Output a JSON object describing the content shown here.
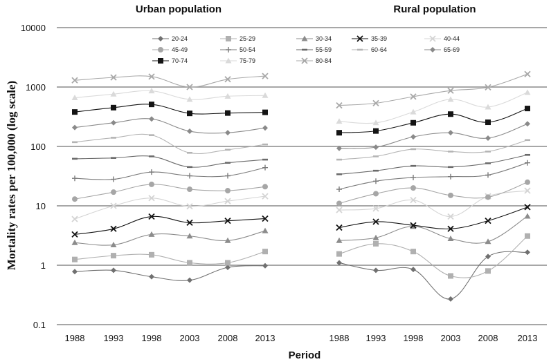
{
  "chart_data": {
    "type": "line",
    "scale": "log",
    "ylabel": "Mortality rates per 100,000 (log scale)",
    "xlabel": "Period",
    "yticks": [
      "0.1",
      "1",
      "10",
      "100",
      "1000",
      "10000"
    ],
    "ytick_values": [
      0.1,
      1,
      10,
      100,
      1000,
      10000
    ],
    "ylim": [
      0.1,
      10000
    ],
    "grid": true,
    "legend_position": "top-center",
    "x": [
      "1988",
      "1993",
      "1998",
      "2003",
      "2008",
      "2013"
    ],
    "legend": [
      {
        "name": "20-24",
        "color": "#707070",
        "marker": "diamond"
      },
      {
        "name": "25-29",
        "color": "#b0b0b0",
        "marker": "square"
      },
      {
        "name": "30-34",
        "color": "#8c8c8c",
        "marker": "triangle"
      },
      {
        "name": "35-39",
        "color": "#111111",
        "marker": "x"
      },
      {
        "name": "40-44",
        "color": "#d4d4d4",
        "marker": "x"
      },
      {
        "name": "45-49",
        "color": "#a6a6a6",
        "marker": "circle"
      },
      {
        "name": "50-54",
        "color": "#7a7a7a",
        "marker": "plus"
      },
      {
        "name": "55-59",
        "color": "#6a6a6a",
        "marker": "dash"
      },
      {
        "name": "60-64",
        "color": "#b4b4b4",
        "marker": "dash"
      },
      {
        "name": "65-69",
        "color": "#8a8a8a",
        "marker": "diamond"
      },
      {
        "name": "70-74",
        "color": "#141414",
        "marker": "square"
      },
      {
        "name": "75-79",
        "color": "#dadada",
        "marker": "triangle"
      },
      {
        "name": "80-84",
        "color": "#a8a8a8",
        "marker": "x"
      }
    ],
    "panels": [
      {
        "title": "Urban population",
        "series": [
          {
            "name": "20-24",
            "values": [
              0.78,
              0.82,
              0.64,
              0.56,
              0.92,
              0.98
            ]
          },
          {
            "name": "25-29",
            "values": [
              1.25,
              1.45,
              1.5,
              1.1,
              1.1,
              1.7
            ]
          },
          {
            "name": "30-34",
            "values": [
              2.4,
              2.2,
              3.3,
              3.1,
              2.6,
              3.8
            ]
          },
          {
            "name": "35-39",
            "values": [
              3.3,
              4.1,
              6.6,
              5.2,
              5.6,
              6.1
            ]
          },
          {
            "name": "40-44",
            "values": [
              6.0,
              10.0,
              13.5,
              9.8,
              12.0,
              14.5
            ]
          },
          {
            "name": "45-49",
            "values": [
              13.0,
              17.0,
              23.0,
              19.0,
              18.0,
              21.0
            ]
          },
          {
            "name": "50-54",
            "values": [
              29.0,
              28.0,
              37.0,
              32.0,
              32.0,
              44.0
            ]
          },
          {
            "name": "55-59",
            "values": [
              62.0,
              64.0,
              68.0,
              45.0,
              53.0,
              60.0
            ]
          },
          {
            "name": "60-64",
            "values": [
              118.0,
              140.0,
              155.0,
              78.0,
              88.0,
              108.0
            ]
          },
          {
            "name": "65-69",
            "values": [
              208.0,
              250.0,
              290.0,
              180.0,
              170.0,
              205.0
            ]
          },
          {
            "name": "70-74",
            "values": [
              380.0,
              450.0,
              510.0,
              360.0,
              365.0,
              375.0
            ]
          },
          {
            "name": "75-79",
            "values": [
              660.0,
              760.0,
              860.0,
              620.0,
              700.0,
              720.0
            ]
          },
          {
            "name": "80-84",
            "values": [
              1300.0,
              1450.0,
              1500.0,
              1000.0,
              1350.0,
              1530.0
            ]
          }
        ]
      },
      {
        "title": "Rural population",
        "series": [
          {
            "name": "20-24",
            "values": [
              1.1,
              0.82,
              0.85,
              0.27,
              1.4,
              1.65
            ]
          },
          {
            "name": "25-29",
            "values": [
              1.55,
              2.3,
              1.7,
              0.66,
              0.8,
              3.1
            ]
          },
          {
            "name": "30-34",
            "values": [
              2.6,
              2.9,
              4.5,
              2.8,
              2.5,
              6.7
            ]
          },
          {
            "name": "35-39",
            "values": [
              4.3,
              5.4,
              4.7,
              4.1,
              5.6,
              9.5
            ]
          },
          {
            "name": "40-44",
            "values": [
              8.5,
              9.0,
              12.5,
              6.6,
              14.5,
              18.0
            ]
          },
          {
            "name": "45-49",
            "values": [
              11.0,
              16.0,
              20.0,
              15.0,
              14.0,
              25.0
            ]
          },
          {
            "name": "50-54",
            "values": [
              19.0,
              26.0,
              30.0,
              31.0,
              33.0,
              53.0
            ]
          },
          {
            "name": "55-59",
            "values": [
              34.0,
              39.0,
              47.0,
              45.0,
              52.0,
              72.0
            ]
          },
          {
            "name": "60-64",
            "values": [
              60.0,
              68.0,
              90.0,
              82.0,
              82.0,
              128.0
            ]
          },
          {
            "name": "65-69",
            "values": [
              93.0,
              97.0,
              145.0,
              170.0,
              138.0,
              240.0
            ]
          },
          {
            "name": "70-74",
            "values": [
              170.0,
              182.0,
              250.0,
              350.0,
              255.0,
              435.0
            ]
          },
          {
            "name": "75-79",
            "values": [
              265.0,
              250.0,
              380.0,
              620.0,
              460.0,
              810.0
            ]
          },
          {
            "name": "80-84",
            "values": [
              490.0,
              535.0,
              690.0,
              870.0,
              990.0,
              1650.0
            ]
          }
        ]
      }
    ]
  }
}
